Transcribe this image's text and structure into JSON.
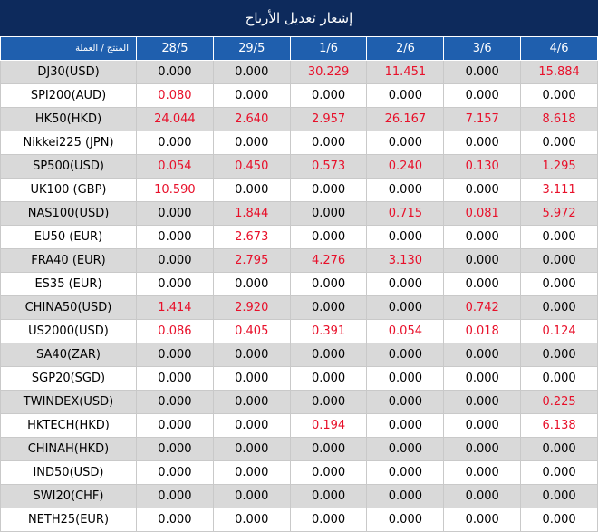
{
  "header": {
    "title": "إشعار تعديل الأرباح"
  },
  "table": {
    "columns": [
      "المنتج / العملة",
      "28/5",
      "29/5",
      "1/6",
      "2/6",
      "3/6",
      "4/6"
    ],
    "rows": [
      [
        "DJ30(USD)",
        "0.000",
        "0.000",
        "30.229",
        "11.451",
        "0.000",
        "15.884"
      ],
      [
        "SPI200(AUD)",
        "0.080",
        "0.000",
        "0.000",
        "0.000",
        "0.000",
        "0.000"
      ],
      [
        "HK50(HKD)",
        "24.044",
        "2.640",
        "2.957",
        "26.167",
        "7.157",
        "8.618"
      ],
      [
        "Nikkei225 (JPN)",
        "0.000",
        "0.000",
        "0.000",
        "0.000",
        "0.000",
        "0.000"
      ],
      [
        "SP500(USD)",
        "0.054",
        "0.450",
        "0.573",
        "0.240",
        "0.130",
        "1.295"
      ],
      [
        "UK100 (GBP)",
        "10.590",
        "0.000",
        "0.000",
        "0.000",
        "0.000",
        "3.111"
      ],
      [
        "NAS100(USD)",
        "0.000",
        "1.844",
        "0.000",
        "0.715",
        "0.081",
        "5.972"
      ],
      [
        "EU50 (EUR)",
        "0.000",
        "2.673",
        "0.000",
        "0.000",
        "0.000",
        "0.000"
      ],
      [
        "FRA40 (EUR)",
        "0.000",
        "2.795",
        "4.276",
        "3.130",
        "0.000",
        "0.000"
      ],
      [
        "ES35 (EUR)",
        "0.000",
        "0.000",
        "0.000",
        "0.000",
        "0.000",
        "0.000"
      ],
      [
        "CHINA50(USD)",
        "1.414",
        "2.920",
        "0.000",
        "0.000",
        "0.742",
        "0.000"
      ],
      [
        "US2000(USD)",
        "0.086",
        "0.405",
        "0.391",
        "0.054",
        "0.018",
        "0.124"
      ],
      [
        "SA40(ZAR)",
        "0.000",
        "0.000",
        "0.000",
        "0.000",
        "0.000",
        "0.000"
      ],
      [
        "SGP20(SGD)",
        "0.000",
        "0.000",
        "0.000",
        "0.000",
        "0.000",
        "0.000"
      ],
      [
        "TWINDEX(USD)",
        "0.000",
        "0.000",
        "0.000",
        "0.000",
        "0.000",
        "0.225"
      ],
      [
        "HKTECH(HKD)",
        "0.000",
        "0.000",
        "0.194",
        "0.000",
        "0.000",
        "6.138"
      ],
      [
        "CHINAH(HKD)",
        "0.000",
        "0.000",
        "0.000",
        "0.000",
        "0.000",
        "0.000"
      ],
      [
        "IND50(USD)",
        "0.000",
        "0.000",
        "0.000",
        "0.000",
        "0.000",
        "0.000"
      ],
      [
        "SWI20(CHF)",
        "0.000",
        "0.000",
        "0.000",
        "0.000",
        "0.000",
        "0.000"
      ],
      [
        "NETH25(EUR)",
        "0.000",
        "0.000",
        "0.000",
        "0.000",
        "0.000",
        "0.000"
      ]
    ]
  }
}
